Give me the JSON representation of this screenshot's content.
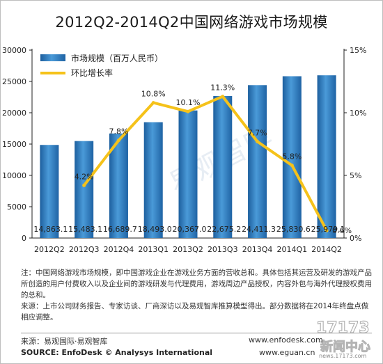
{
  "chart_data": {
    "type": "bar",
    "title": "2012Q2-2014Q2中国网络游戏市场规模",
    "categories": [
      "2012Q2",
      "2012Q3",
      "2012Q4",
      "2013Q1",
      "2013Q2",
      "2013Q3",
      "2013Q4",
      "2014Q1",
      "2014Q2"
    ],
    "series": [
      {
        "name": "市场规模（百万人民币）",
        "type": "bar",
        "axis": "left",
        "color": "#3a86c8",
        "values": [
          14863.1,
          15483.1,
          16689.7,
          18493.0,
          20367.0,
          22675.2,
          24411.3,
          25830.6,
          25979.1
        ],
        "labels": [
          "14,863.1",
          "15,483.1",
          "16,689.7",
          "18,493.0",
          "20,367.0",
          "22,675.2",
          "24,411.3",
          "25,830.6",
          "25,979.1"
        ]
      },
      {
        "name": "环比增长率",
        "type": "line",
        "axis": "right",
        "color": "#f5c21a",
        "values": [
          null,
          4.2,
          7.8,
          10.8,
          10.1,
          11.3,
          7.7,
          5.8,
          0.6
        ],
        "labels": [
          "",
          "4.2%",
          "7.8%",
          "10.8%",
          "10.1%",
          "11.3%",
          "7.7%",
          "5.8%",
          "0.6%"
        ]
      }
    ],
    "ylim_left": [
      0,
      30000
    ],
    "yticks_left": [
      "0",
      "5000",
      "10000",
      "15000",
      "20000",
      "25000",
      "30000"
    ],
    "ylim_right": [
      0,
      15
    ],
    "yticks_right": [
      "0%",
      "5%",
      "10%",
      "15%"
    ],
    "legend_position": "top-left",
    "grid": false
  },
  "notes": {
    "note": "注：中国网络游戏市场规模，即中国游戏企业在游戏业务方面的营收总和。具体包括其运营及研发的游戏产品所创造的用户付费收入以及企业间的游戏研发与代理费用，游戏周边产品授权，内容外包与海外代理授权费用的总和。",
    "source_note": "来源：上市公司财务报告、专家访谈、厂商深访以及易观智库推算模型得出。部分数据将在2014年终盘点做相应调整。"
  },
  "footer": {
    "source_cn": "来源：易观国际·易观智库",
    "source_en": "SOURCE: EnfoDesk © Analysys International",
    "site1": "www.enfodesk.com",
    "site2": "www.eguan.cn"
  },
  "watermark": {
    "logo_text": "新闻中心",
    "site": "news.17173.com",
    "center_text": "易观智库"
  }
}
